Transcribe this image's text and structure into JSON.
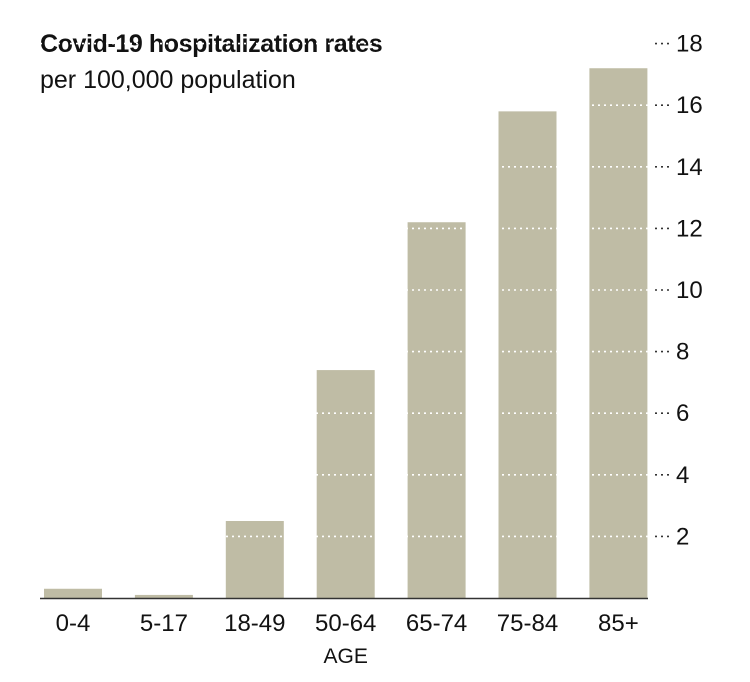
{
  "chart_data": {
    "type": "bar",
    "title": "Covid-19 hospitalization rates",
    "subtitle": "per 100,000 population",
    "xlabel": "AGE",
    "ylabel": "",
    "categories": [
      "0-4",
      "5-17",
      "18-49",
      "50-64",
      "65-74",
      "75-84",
      "85+"
    ],
    "values": [
      0.3,
      0.1,
      2.5,
      7.4,
      12.2,
      15.8,
      17.2
    ],
    "ylim": [
      0,
      18
    ],
    "yticks": [
      2,
      4,
      6,
      8,
      10,
      12,
      14,
      16,
      18
    ],
    "grid": "dotted",
    "y_axis_position": "right",
    "colors": {
      "bar": "#bfbca5",
      "grid": "#ffffff",
      "text": "#121212",
      "axis": "#333333"
    }
  }
}
